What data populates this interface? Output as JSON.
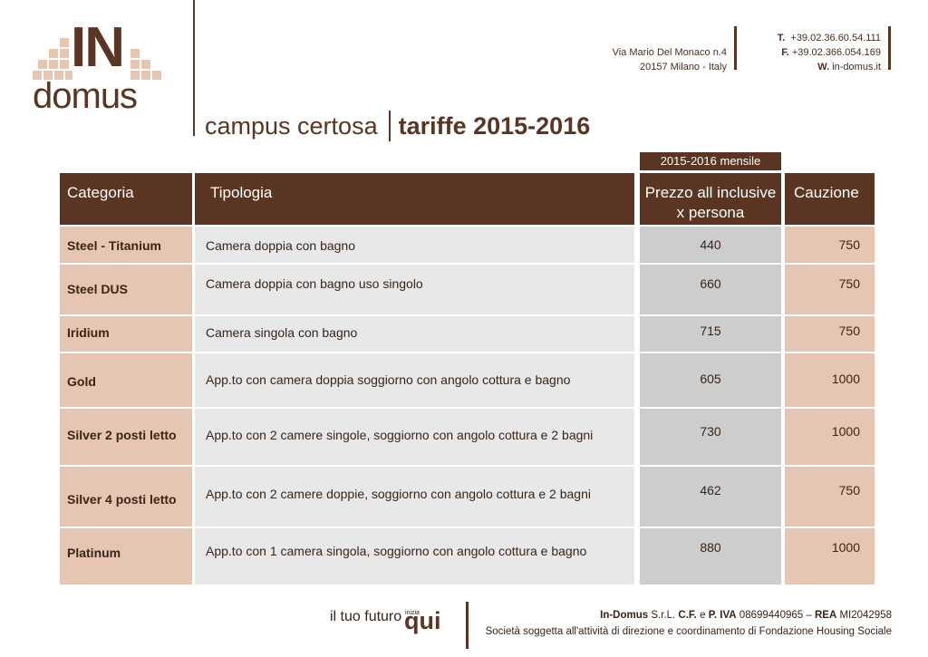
{
  "logo": {
    "word_in": "IN",
    "word_domus": "domus"
  },
  "address": {
    "street": "Via Mario Del Monaco n.4",
    "city": "20157 Milano - Italy"
  },
  "contact": {
    "phone_label": "T.",
    "phone": "+39.02.36.60.54.111",
    "fax_label": "F.",
    "fax": "+39.02.366.054.169",
    "web_label": "W.",
    "web": "in-domus.it"
  },
  "title": {
    "campus": "campus certosa",
    "tariffe": "tariffe 2015-2016"
  },
  "period_tag": "2015-2016 mensile",
  "table": {
    "headers": {
      "categoria": "Categoria",
      "tipologia": "Tipologia",
      "prezzo_line1": "Prezzo all inclusive",
      "prezzo_line2": "x persona",
      "cauzione": "Cauzione"
    },
    "rows": [
      {
        "categoria": "Steel - Titanium",
        "tipologia": "Camera doppia con bagno",
        "prezzo": "440",
        "cauzione": "750"
      },
      {
        "categoria": "Steel DUS",
        "tipologia": "Camera doppia con bagno uso singolo",
        "prezzo": "660",
        "cauzione": "750"
      },
      {
        "categoria": "Iridium",
        "tipologia": "Camera singola con bagno",
        "prezzo": "715",
        "cauzione": "750"
      },
      {
        "categoria": "Gold",
        "tipologia": "App.to con camera doppia soggiorno con angolo cottura e bagno",
        "prezzo": "605",
        "cauzione": "1000"
      },
      {
        "categoria": "Silver 2 posti letto",
        "tipologia": "App.to con 2 camere singole, soggiorno con angolo cottura e 2 bagni",
        "prezzo": "730",
        "cauzione": "1000"
      },
      {
        "categoria": "Silver 4 posti letto",
        "tipologia": "App.to con 2 camere doppie, soggiorno con angolo cottura e 2 bagni",
        "prezzo": "462",
        "cauzione": "750"
      },
      {
        "categoria": "Platinum",
        "tipologia": "App.to con 1 camera singola, soggiorno con angolo cottura e bagno",
        "prezzo": "880",
        "cauzione": "1000"
      }
    ]
  },
  "footer": {
    "slogan": "il tuo futuro",
    "inizia": "inizia",
    "qui": "qui",
    "company_name": "In-Domus",
    "company_type": "S.r.L.",
    "cf_label": "C.F.",
    "e_word": "e",
    "piva_label": "P. IVA",
    "piva": "08699440965",
    "dash": "–",
    "rea_label": "REA",
    "rea": "MI2042958",
    "subline": "Società soggetta all'attività di direzione e coordinamento di Fondazione Housing Sociale"
  },
  "colors": {
    "brand_brown": "#5a3524",
    "cat_fill": "#e6c6b2",
    "tip_fill": "#e8e8e8",
    "price_fill": "#cdcdcd"
  }
}
